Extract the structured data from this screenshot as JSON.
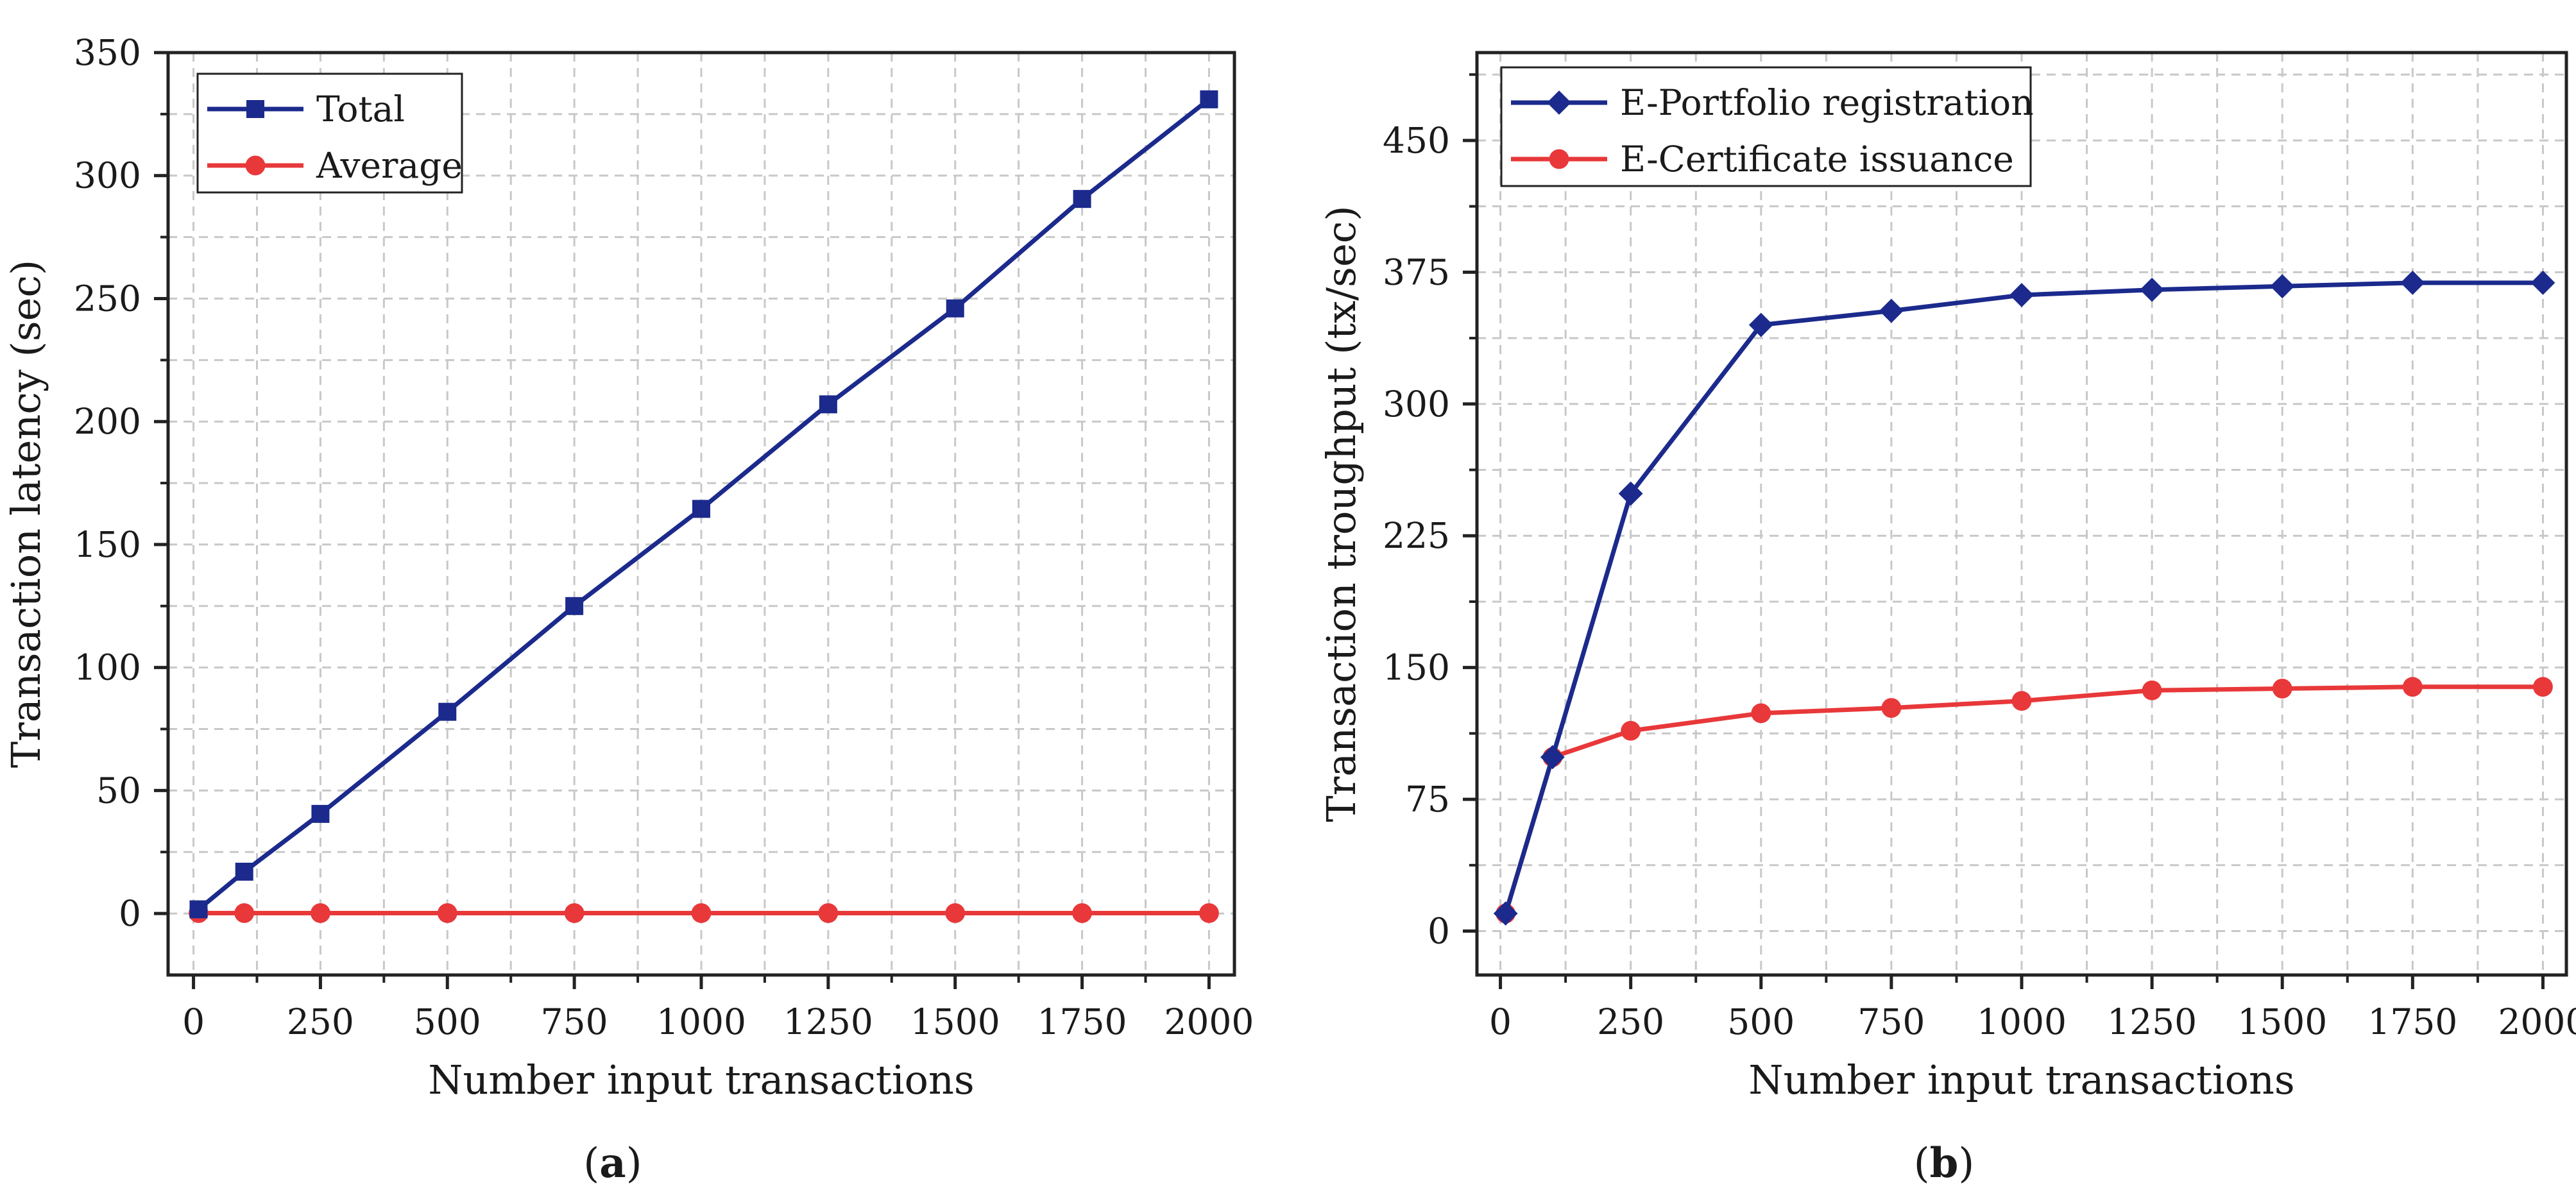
{
  "chart_data": [
    {
      "type": "line",
      "panel_label": "a",
      "xlabel": "Number input transactions",
      "ylabel": "Transaction latency (sec)",
      "x": [
        10,
        100,
        250,
        500,
        750,
        1000,
        1250,
        1500,
        1750,
        2000
      ],
      "xlim": [
        -50,
        2050
      ],
      "ylim": [
        -25,
        350
      ],
      "xticks": [
        0,
        250,
        500,
        750,
        1000,
        1250,
        1500,
        1750,
        2000
      ],
      "xtick_labels": [
        "0",
        "250",
        "500",
        "750",
        "1000",
        "1250",
        "1500",
        "1750",
        "2000"
      ],
      "yticks": [
        0,
        50,
        100,
        150,
        200,
        250,
        300,
        350
      ],
      "ytick_labels": [
        "0",
        "50",
        "100",
        "150",
        "200",
        "250",
        "300",
        "350"
      ],
      "grid": true,
      "legend_position": "top-left",
      "series": [
        {
          "name": "Total",
          "color": "#1b2a8c",
          "marker": "square",
          "values": [
            1.7,
            17,
            40.5,
            82,
            125,
            164.5,
            207,
            246,
            290.5,
            331
          ]
        },
        {
          "name": "Average",
          "color": "#e8383a",
          "marker": "circle",
          "values": [
            0.17,
            0.17,
            0.17,
            0.17,
            0.17,
            0.17,
            0.17,
            0.17,
            0.17,
            0.17
          ]
        }
      ]
    },
    {
      "type": "line",
      "panel_label": "b",
      "xlabel": "Number input transactions",
      "ylabel": "Transaction troughput (tx/sec)",
      "x": [
        10,
        100,
        250,
        500,
        750,
        1000,
        1250,
        1500,
        1750,
        2000
      ],
      "xlim": [
        -45,
        2045
      ],
      "ylim": [
        -25,
        500
      ],
      "xticks": [
        0,
        250,
        500,
        750,
        1000,
        1250,
        1500,
        1750,
        2000
      ],
      "xtick_labels": [
        "0",
        "250",
        "500",
        "750",
        "1000",
        "1250",
        "1500",
        "1750",
        "2000"
      ],
      "yticks": [
        0,
        75,
        150,
        225,
        300,
        375,
        450
      ],
      "ytick_labels": [
        "0",
        "75",
        "150",
        "225",
        "300",
        "375",
        "450"
      ],
      "grid": true,
      "legend_position": "top-left",
      "series": [
        {
          "name": "E-Portfolio registration",
          "color": "#1b2a8c",
          "marker": "diamond",
          "values": [
            10,
            99,
            249,
            345,
            353,
            362,
            365,
            367,
            369,
            369
          ]
        },
        {
          "name": "E-Certificate issuance",
          "color": "#e8383a",
          "marker": "circle",
          "values": [
            10,
            99,
            114,
            124,
            127,
            131,
            137,
            138,
            139,
            139
          ]
        }
      ]
    }
  ]
}
